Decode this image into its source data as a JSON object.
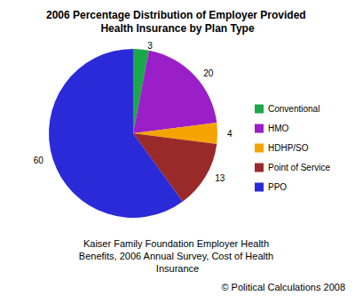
{
  "chart_data": {
    "type": "pie",
    "title": "2006 Percentage Distribution of Employer Provided Health Insurance by Plan Type",
    "subtitle": "Kaiser Family Foundation Employer Health Benefits, 2006 Annual Survey, Cost of Health Insurance",
    "annotations": [
      "© Political Calculations 2008"
    ],
    "categories": [
      "Conventional",
      "HMO",
      "HDHP/SO",
      "Point of Service",
      "PPO"
    ],
    "values": [
      3,
      20,
      4,
      13,
      60
    ],
    "colors": [
      "#1aa84a",
      "#9b1fc8",
      "#f5a300",
      "#9a2a2a",
      "#2a2ad8"
    ],
    "legend": "right",
    "data_labels": true
  }
}
